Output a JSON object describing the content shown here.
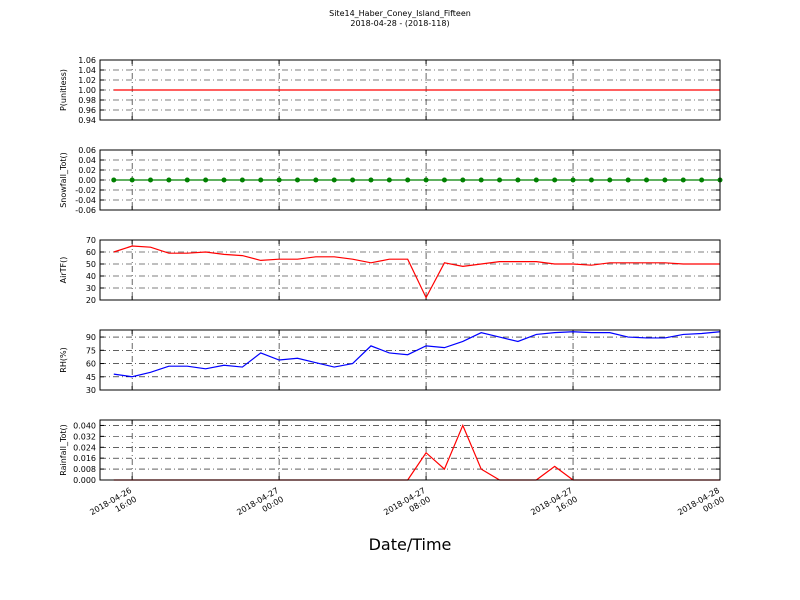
{
  "title": "Site14_Haber_Coney_Island_Fifteen",
  "subtitle": "2018-04-28 - (2018-118)",
  "xlabel": "Date/Time",
  "chart_data": [
    {
      "type": "line",
      "ylabel": "P(unitless)",
      "color": "#ff0000",
      "grid": true,
      "x": [
        "2018-04-26 15:00",
        "2018-04-26 16:00",
        "2018-04-26 17:00",
        "2018-04-26 18:00",
        "2018-04-26 19:00",
        "2018-04-26 20:00",
        "2018-04-26 21:00",
        "2018-04-26 22:00",
        "2018-04-26 23:00",
        "2018-04-27 00:00",
        "2018-04-27 01:00",
        "2018-04-27 02:00",
        "2018-04-27 03:00",
        "2018-04-27 04:00",
        "2018-04-27 05:00",
        "2018-04-27 06:00",
        "2018-04-27 07:00",
        "2018-04-27 08:00",
        "2018-04-27 09:00",
        "2018-04-27 10:00",
        "2018-04-27 11:00",
        "2018-04-27 12:00",
        "2018-04-27 13:00",
        "2018-04-27 14:00",
        "2018-04-27 15:00",
        "2018-04-27 16:00",
        "2018-04-27 17:00",
        "2018-04-27 18:00",
        "2018-04-27 19:00",
        "2018-04-27 20:00",
        "2018-04-27 21:00",
        "2018-04-27 22:00",
        "2018-04-27 23:00",
        "2018-04-28 00:00"
      ],
      "values": [
        1,
        1,
        1,
        1,
        1,
        1,
        1,
        1,
        1,
        1,
        1,
        1,
        1,
        1,
        1,
        1,
        1,
        1,
        1,
        1,
        1,
        1,
        1,
        1,
        1,
        1,
        1,
        1,
        1,
        1,
        1,
        1,
        1,
        1
      ],
      "xlim": [
        "2018-04-26 14:15",
        "2018-04-28 00:00"
      ],
      "xticks": [
        "2018-04-26 16:00",
        "2018-04-27 00:00",
        "2018-04-27 08:00",
        "2018-04-27 16:00",
        "2018-04-28 00:00"
      ],
      "ylim": [
        0.94,
        1.06
      ],
      "yticks": [
        0.94,
        0.96,
        0.98,
        {
          "value": 1,
          "label": "1.00"
        },
        1.02,
        1.04,
        1.06
      ]
    },
    {
      "type": "line",
      "ylabel": "Snowfall_Tot()",
      "color": "#008000",
      "marker": true,
      "grid": true,
      "x": [
        "2018-04-26 15:00",
        "2018-04-26 16:00",
        "2018-04-26 17:00",
        "2018-04-26 18:00",
        "2018-04-26 19:00",
        "2018-04-26 20:00",
        "2018-04-26 21:00",
        "2018-04-26 22:00",
        "2018-04-26 23:00",
        "2018-04-27 00:00",
        "2018-04-27 01:00",
        "2018-04-27 02:00",
        "2018-04-27 03:00",
        "2018-04-27 04:00",
        "2018-04-27 05:00",
        "2018-04-27 06:00",
        "2018-04-27 07:00",
        "2018-04-27 08:00",
        "2018-04-27 09:00",
        "2018-04-27 10:00",
        "2018-04-27 11:00",
        "2018-04-27 12:00",
        "2018-04-27 13:00",
        "2018-04-27 14:00",
        "2018-04-27 15:00",
        "2018-04-27 16:00",
        "2018-04-27 17:00",
        "2018-04-27 18:00",
        "2018-04-27 19:00",
        "2018-04-27 20:00",
        "2018-04-27 21:00",
        "2018-04-27 22:00",
        "2018-04-27 23:00",
        "2018-04-28 00:00"
      ],
      "values": [
        0,
        0,
        0,
        0,
        0,
        0,
        0,
        0,
        0,
        0,
        0,
        0,
        0,
        0,
        0,
        0,
        0,
        0,
        0,
        0,
        0,
        0,
        0,
        0,
        0,
        0,
        0,
        0,
        0,
        0,
        0,
        0,
        0,
        0
      ],
      "xlim": [
        "2018-04-26 14:15",
        "2018-04-28 00:00"
      ],
      "xticks": [
        "2018-04-26 16:00",
        "2018-04-27 00:00",
        "2018-04-27 08:00",
        "2018-04-27 16:00",
        "2018-04-28 00:00"
      ],
      "ylim": [
        -0.06,
        0.06
      ],
      "yticks": [
        -0.06,
        -0.04,
        -0.02,
        {
          "value": 0,
          "label": "0.00"
        },
        0.02,
        0.04,
        0.06
      ]
    },
    {
      "type": "line",
      "ylabel": "AirTF()",
      "color": "#ff0000",
      "grid": true,
      "x": [
        "2018-04-26 15:00",
        "2018-04-26 16:00",
        "2018-04-26 17:00",
        "2018-04-26 18:00",
        "2018-04-26 19:00",
        "2018-04-26 20:00",
        "2018-04-26 21:00",
        "2018-04-26 22:00",
        "2018-04-26 23:00",
        "2018-04-27 00:00",
        "2018-04-27 01:00",
        "2018-04-27 02:00",
        "2018-04-27 03:00",
        "2018-04-27 04:00",
        "2018-04-27 05:00",
        "2018-04-27 06:00",
        "2018-04-27 07:00",
        "2018-04-27 08:00",
        "2018-04-27 09:00",
        "2018-04-27 10:00",
        "2018-04-27 11:00",
        "2018-04-27 12:00",
        "2018-04-27 13:00",
        "2018-04-27 14:00",
        "2018-04-27 15:00",
        "2018-04-27 16:00",
        "2018-04-27 17:00",
        "2018-04-27 18:00",
        "2018-04-27 19:00",
        "2018-04-27 20:00",
        "2018-04-27 21:00",
        "2018-04-27 22:00",
        "2018-04-27 23:00",
        "2018-04-28 00:00"
      ],
      "values": [
        60,
        65,
        64,
        59,
        59,
        60,
        58,
        57,
        53,
        54,
        54,
        56,
        56,
        54,
        51,
        54,
        54,
        22,
        51,
        48,
        50,
        52,
        52,
        52,
        50,
        50,
        49,
        51,
        51,
        51,
        51,
        50,
        50,
        50
      ],
      "xlim": [
        "2018-04-26 14:15",
        "2018-04-28 00:00"
      ],
      "xticks": [
        "2018-04-26 16:00",
        "2018-04-27 00:00",
        "2018-04-27 08:00",
        "2018-04-27 16:00",
        "2018-04-28 00:00"
      ],
      "ylim": [
        20,
        70
      ],
      "yticks": [
        20,
        30,
        40,
        50,
        60,
        70
      ]
    },
    {
      "type": "line",
      "ylabel": "RH(%)",
      "color": "#0000ff",
      "grid": true,
      "x": [
        "2018-04-26 15:00",
        "2018-04-26 16:00",
        "2018-04-26 17:00",
        "2018-04-26 18:00",
        "2018-04-26 19:00",
        "2018-04-26 20:00",
        "2018-04-26 21:00",
        "2018-04-26 22:00",
        "2018-04-26 23:00",
        "2018-04-27 00:00",
        "2018-04-27 01:00",
        "2018-04-27 02:00",
        "2018-04-27 03:00",
        "2018-04-27 04:00",
        "2018-04-27 05:00",
        "2018-04-27 06:00",
        "2018-04-27 07:00",
        "2018-04-27 08:00",
        "2018-04-27 09:00",
        "2018-04-27 10:00",
        "2018-04-27 11:00",
        "2018-04-27 12:00",
        "2018-04-27 13:00",
        "2018-04-27 14:00",
        "2018-04-27 15:00",
        "2018-04-27 16:00",
        "2018-04-27 17:00",
        "2018-04-27 18:00",
        "2018-04-27 19:00",
        "2018-04-27 20:00",
        "2018-04-27 21:00",
        "2018-04-27 22:00",
        "2018-04-27 23:00",
        "2018-04-28 00:00"
      ],
      "values": [
        48,
        45,
        50,
        57,
        57,
        54,
        58,
        56,
        72,
        64,
        66,
        61,
        56,
        60,
        80,
        72,
        70,
        80,
        78,
        85,
        95,
        90,
        85,
        93,
        95,
        96,
        95,
        95,
        90,
        89,
        89,
        93,
        94,
        96
      ],
      "xlim": [
        "2018-04-26 14:15",
        "2018-04-28 00:00"
      ],
      "xticks": [
        "2018-04-26 16:00",
        "2018-04-27 00:00",
        "2018-04-27 08:00",
        "2018-04-27 16:00",
        "2018-04-28 00:00"
      ],
      "ylim": [
        30,
        98
      ],
      "yticks": [
        30,
        45,
        60,
        75,
        90
      ]
    },
    {
      "type": "line",
      "ylabel": "Rainfall_Tot()",
      "color": "#ff0000",
      "grid": true,
      "x": [
        "2018-04-26 15:00",
        "2018-04-26 16:00",
        "2018-04-26 17:00",
        "2018-04-26 18:00",
        "2018-04-26 19:00",
        "2018-04-26 20:00",
        "2018-04-26 21:00",
        "2018-04-26 22:00",
        "2018-04-26 23:00",
        "2018-04-27 00:00",
        "2018-04-27 01:00",
        "2018-04-27 02:00",
        "2018-04-27 03:00",
        "2018-04-27 04:00",
        "2018-04-27 05:00",
        "2018-04-27 06:00",
        "2018-04-27 07:00",
        "2018-04-27 08:00",
        "2018-04-27 09:00",
        "2018-04-27 10:00",
        "2018-04-27 11:00",
        "2018-04-27 12:00",
        "2018-04-27 13:00",
        "2018-04-27 14:00",
        "2018-04-27 15:00",
        "2018-04-27 16:00",
        "2018-04-27 17:00",
        "2018-04-27 18:00",
        "2018-04-27 19:00",
        "2018-04-27 20:00",
        "2018-04-27 21:00",
        "2018-04-27 22:00",
        "2018-04-27 23:00",
        "2018-04-28 00:00"
      ],
      "values": [
        0,
        0,
        0,
        0,
        0,
        0,
        0,
        0,
        0,
        0,
        0,
        0,
        0,
        0,
        0,
        0,
        0,
        0.02,
        0.008,
        0.04,
        0.008,
        0,
        0,
        0,
        0.01,
        0,
        0,
        0,
        0,
        0,
        0,
        0,
        0,
        0
      ],
      "xlim": [
        "2018-04-26 14:15",
        "2018-04-28 00:00"
      ],
      "xticks": [
        "2018-04-26 16:00",
        "2018-04-27 00:00",
        "2018-04-27 08:00",
        "2018-04-27 16:00",
        "2018-04-28 00:00"
      ],
      "ylim": [
        0,
        0.044
      ],
      "yticks": [
        {
          "value": 0,
          "label": "0.000"
        },
        0.008,
        0.016,
        0.024,
        0.032,
        {
          "value": 0.04,
          "label": "0.040"
        }
      ]
    }
  ]
}
